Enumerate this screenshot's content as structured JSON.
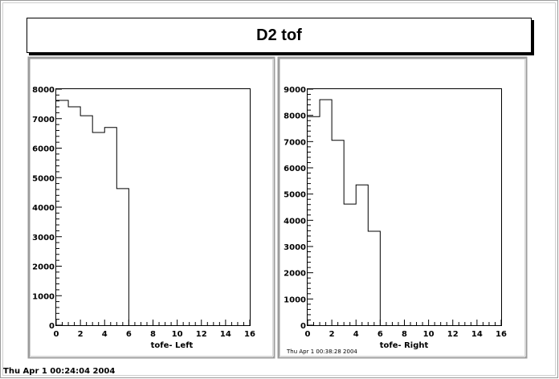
{
  "title": "D2 tof",
  "footer_date": "Thu Apr  1 00:24:04 2004",
  "stamp": "Thu Apr  1 00:38:28 2004",
  "chart_data": [
    {
      "type": "bar",
      "xlabel": "tofe- Left",
      "ylabel": "",
      "xlim": [
        0,
        16
      ],
      "ylim": [
        0,
        8000
      ],
      "xticks": [
        0,
        2,
        4,
        6,
        8,
        10,
        12,
        14,
        16
      ],
      "yticks": [
        0,
        1000,
        2000,
        3000,
        4000,
        5000,
        6000,
        7000,
        8000
      ],
      "bin_edges": [
        0,
        1,
        2,
        3,
        4,
        5,
        6
      ],
      "values": [
        7620,
        7400,
        7100,
        6530,
        6700,
        4630
      ]
    },
    {
      "type": "bar",
      "xlabel": "tofe- Right",
      "ylabel": "",
      "xlim": [
        0,
        16
      ],
      "ylim": [
        0,
        9000
      ],
      "xticks": [
        0,
        2,
        4,
        6,
        8,
        10,
        12,
        14,
        16
      ],
      "yticks": [
        0,
        1000,
        2000,
        3000,
        4000,
        5000,
        6000,
        7000,
        8000,
        9000
      ],
      "bin_edges": [
        0,
        1,
        2,
        3,
        4,
        5,
        6
      ],
      "values": [
        7950,
        8600,
        7050,
        4620,
        5350,
        3580
      ]
    }
  ]
}
